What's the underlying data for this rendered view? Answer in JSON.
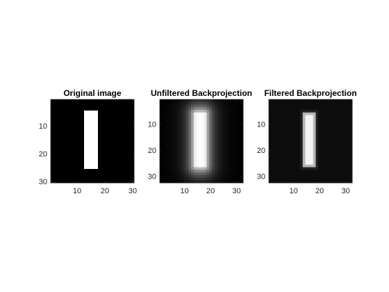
{
  "figure": {
    "background": "#ffffff"
  },
  "chart_data": [
    {
      "type": "heatmap",
      "title": "Original image",
      "xlim": [
        0.5,
        30.5
      ],
      "ylim": [
        0.5,
        30.5
      ],
      "y_direction": "top-down",
      "grid": false,
      "colormap": "gray",
      "xticks": [
        "10",
        "20",
        "30"
      ],
      "yticks": [
        "10",
        "20",
        "30"
      ],
      "shape": {
        "kind": "rectangle",
        "x_range": [
          13,
          17
        ],
        "y_range": [
          5,
          25
        ],
        "intensity": 1.0,
        "background": 0.0
      }
    },
    {
      "type": "heatmap",
      "title": "Unfiltered Backprojection",
      "xlim": [
        0.5,
        32.5
      ],
      "ylim": [
        0.5,
        32.5
      ],
      "y_direction": "top-down",
      "grid": false,
      "colormap": "gray",
      "xticks": [
        "10",
        "20",
        "30"
      ],
      "yticks": [
        "10",
        "20",
        "30"
      ],
      "shape": {
        "kind": "blurred-rectangle",
        "x_range": [
          14,
          18
        ],
        "y_range": [
          6,
          26
        ],
        "intensity": 1.0,
        "background": 0.0
      }
    },
    {
      "type": "heatmap",
      "title": "Filtered Backprojection",
      "xlim": [
        0.5,
        32.5
      ],
      "ylim": [
        0.5,
        32.5
      ],
      "y_direction": "top-down",
      "grid": false,
      "colormap": "gray",
      "xticks": [
        "10",
        "20",
        "30"
      ],
      "yticks": [
        "10",
        "20",
        "30"
      ],
      "shape": {
        "kind": "sharpened-rectangle",
        "x_range": [
          14,
          18
        ],
        "y_range": [
          6,
          26
        ],
        "intensity": 1.0,
        "background": 0.05
      }
    }
  ]
}
